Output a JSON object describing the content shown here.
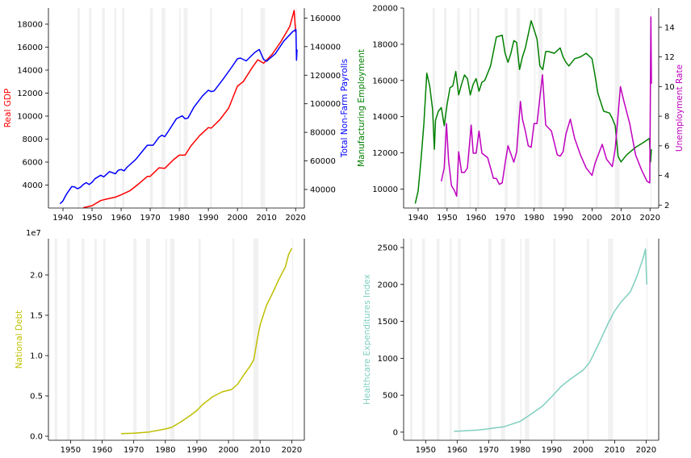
{
  "chart_data": [
    {
      "type": "line",
      "recession_shading": true,
      "xlim": [
        1935,
        2023
      ],
      "xticks": [
        1940,
        1950,
        1960,
        1970,
        1980,
        1990,
        2000,
        2010,
        2020
      ],
      "left_axis": {
        "label": "Real GDP",
        "color": "#ff0000",
        "ylim": [
          2000,
          19400
        ],
        "ticks": [
          4000,
          6000,
          8000,
          10000,
          12000,
          14000,
          16000,
          18000
        ]
      },
      "right_axis": {
        "label": "Total Non-Farm Payrolls",
        "color": "#0000ff",
        "ylim": [
          27000,
          167000
        ],
        "ticks": [
          40000,
          60000,
          80000,
          100000,
          120000,
          140000,
          160000
        ]
      },
      "series": [
        {
          "axis": "left",
          "color": "#ff0000",
          "x": [
            1947,
            1950,
            1953,
            1955,
            1958,
            1960,
            1963,
            1966,
            1969,
            1970,
            1973,
            1975,
            1978,
            1980,
            1982,
            1984,
            1987,
            1990,
            1991,
            1994,
            1997,
            2000,
            2002,
            2005,
            2007,
            2009,
            2012,
            2015,
            2018,
            2019.5,
            2020
          ],
          "y": [
            2030,
            2200,
            2650,
            2780,
            2950,
            3150,
            3500,
            4100,
            4750,
            4760,
            5500,
            5450,
            6200,
            6600,
            6600,
            7400,
            8300,
            9000,
            8950,
            9700,
            10700,
            12600,
            13000,
            14200,
            14900,
            14600,
            15400,
            16500,
            17800,
            19200,
            17300
          ]
        },
        {
          "axis": "right",
          "color": "#0000ff",
          "x": [
            1939,
            1940,
            1941,
            1942,
            1943,
            1944,
            1945,
            1946,
            1947,
            1948,
            1949,
            1950,
            1951,
            1953,
            1954,
            1956,
            1958,
            1959,
            1960,
            1961,
            1962,
            1965,
            1967,
            1969,
            1970,
            1971,
            1973,
            1974,
            1975,
            1976,
            1979,
            1980,
            1981,
            1982,
            1983,
            1985,
            1988,
            1990,
            1991,
            1992,
            1995,
            1998,
            2000,
            2001,
            2003,
            2006,
            2007.5,
            2009,
            2010,
            2013,
            2016,
            2019,
            2020.1,
            2020.3,
            2020.5
          ],
          "y": [
            30000,
            32000,
            36000,
            39000,
            42000,
            41800,
            40500,
            41500,
            43500,
            44800,
            43500,
            45000,
            47500,
            50000,
            48800,
            52500,
            51000,
            53500,
            54000,
            53000,
            55500,
            61000,
            66000,
            71000,
            71000,
            71000,
            76500,
            78000,
            77000,
            80000,
            89500,
            90500,
            91500,
            89500,
            90000,
            97500,
            105500,
            109500,
            108500,
            109000,
            117000,
            125500,
            131500,
            132000,
            130000,
            136000,
            138000,
            131000,
            129800,
            135000,
            144000,
            150500,
            152000,
            130500,
            138000
          ]
        }
      ]
    },
    {
      "type": "line",
      "recession_shading": true,
      "xlim": [
        1935,
        2023
      ],
      "xticks": [
        1940,
        1950,
        1960,
        1970,
        1980,
        1990,
        2000,
        2010,
        2020
      ],
      "left_axis": {
        "label": "Manufacturing Employment",
        "color": "#008000",
        "ylim": [
          8950,
          20000
        ],
        "ticks": [
          10000,
          12000,
          14000,
          16000,
          18000,
          20000
        ]
      },
      "right_axis": {
        "label": "Unemployment Rate",
        "color": "#bf00bf",
        "ylim": [
          1.8,
          15.3
        ],
        "ticks": [
          2,
          4,
          6,
          8,
          10,
          12,
          14
        ]
      },
      "series": [
        {
          "axis": "left",
          "color": "#008000",
          "x": [
            1939,
            1940,
            1941,
            1942,
            1943,
            1944,
            1945,
            1945.6,
            1946,
            1947,
            1948,
            1949,
            1950,
            1951,
            1952,
            1953,
            1954,
            1955,
            1956,
            1957,
            1958,
            1959,
            1960,
            1961,
            1962,
            1963,
            1965,
            1966,
            1967,
            1969,
            1970,
            1971,
            1972,
            1973,
            1974,
            1975,
            1976,
            1977,
            1979,
            1980,
            1981,
            1982,
            1983,
            1984,
            1985,
            1987,
            1989,
            1990,
            1991,
            1992,
            1994,
            1996,
            1998,
            2000,
            2001,
            2002,
            2004,
            2006,
            2007,
            2008,
            2009,
            2010,
            2012,
            2015,
            2018,
            2019.8,
            2020.2,
            2020.5
          ],
          "y": [
            9200,
            9900,
            11600,
            13600,
            16400,
            15700,
            14400,
            12200,
            13800,
            14300,
            14500,
            13500,
            14700,
            15600,
            15700,
            16500,
            15200,
            15800,
            16300,
            16100,
            15200,
            15800,
            16100,
            15400,
            15900,
            16000,
            16800,
            17600,
            18400,
            18500,
            17500,
            17000,
            17500,
            18200,
            18100,
            16600,
            17300,
            17800,
            19300,
            18800,
            18300,
            16800,
            16600,
            17600,
            17600,
            17500,
            17800,
            17300,
            17000,
            16800,
            17200,
            17300,
            17500,
            17200,
            16300,
            15300,
            14300,
            14200,
            13900,
            13500,
            11800,
            11500,
            11900,
            12300,
            12600,
            12800,
            11500,
            12200
          ]
        },
        {
          "axis": "right",
          "color": "#bf00bf",
          "x": [
            1948,
            1949,
            1949.8,
            1950.5,
            1951.5,
            1952.5,
            1953.3,
            1954,
            1955,
            1956,
            1957,
            1958.3,
            1959,
            1960,
            1961,
            1962,
            1964,
            1966,
            1967,
            1968,
            1969,
            1970,
            1971,
            1973,
            1974,
            1975.3,
            1976,
            1977,
            1978,
            1979,
            1980,
            1981,
            1982.9,
            1984,
            1986,
            1988,
            1989,
            1990,
            1991,
            1992.5,
            1994,
            1996,
            1998,
            2000,
            2001,
            2003.5,
            2005,
            2007,
            2008,
            2009.8,
            2011,
            2013,
            2015,
            2017,
            2019,
            2019.9,
            2020.3,
            2020.5
          ],
          "y": [
            3.6,
            4.5,
            7.5,
            5.0,
            3.3,
            3.0,
            2.6,
            5.6,
            4.2,
            4.2,
            4.5,
            7.4,
            5.5,
            5.5,
            7.0,
            5.5,
            5.2,
            3.8,
            3.8,
            3.4,
            3.5,
            4.8,
            6.0,
            4.9,
            5.6,
            9.0,
            7.8,
            7.0,
            6.0,
            5.9,
            7.5,
            7.5,
            10.8,
            7.4,
            7.0,
            5.4,
            5.3,
            5.6,
            6.8,
            7.8,
            6.5,
            5.4,
            4.5,
            4.0,
            4.8,
            6.1,
            5.1,
            4.6,
            5.8,
            10.0,
            9.0,
            7.5,
            5.4,
            4.4,
            3.6,
            3.5,
            14.7,
            10.2
          ]
        }
      ]
    },
    {
      "type": "line",
      "recession_shading": true,
      "xlim": [
        1943,
        2024
      ],
      "xticks": [
        1950,
        1960,
        1970,
        1980,
        1990,
        2000,
        2010,
        2020
      ],
      "offset_text": "1e7",
      "left_axis": {
        "label": "National Debt",
        "color": "#bfbf00",
        "ylim": [
          -0.05,
          2.45
        ],
        "ticks": [
          0.0,
          0.5,
          1.0,
          1.5,
          2.0
        ],
        "tick_labels": [
          "0.0",
          "0.5",
          "1.0",
          "1.5",
          "2.0"
        ]
      },
      "series": [
        {
          "axis": "left",
          "color": "#bfbf00",
          "x": [
            1966,
            1970,
            1975,
            1980,
            1982,
            1985,
            1988,
            1990,
            1992,
            1995,
            1998,
            2000,
            2001,
            2003,
            2005,
            2007,
            2008,
            2009,
            2010,
            2012,
            2014,
            2016,
            2018,
            2019,
            2020
          ],
          "y": [
            0.032,
            0.037,
            0.053,
            0.09,
            0.11,
            0.18,
            0.26,
            0.32,
            0.4,
            0.49,
            0.55,
            0.57,
            0.58,
            0.65,
            0.77,
            0.88,
            0.95,
            1.18,
            1.38,
            1.62,
            1.78,
            1.95,
            2.1,
            2.25,
            2.33
          ]
        }
      ]
    },
    {
      "type": "line",
      "recession_shading": true,
      "xlim": [
        1943,
        2024
      ],
      "xticks": [
        1950,
        1960,
        1970,
        1980,
        1990,
        2000,
        2010,
        2020
      ],
      "left_axis": {
        "label": "Healthcare Expenditures Index",
        "color": "#7fcfbf",
        "ylim": [
          -110,
          2620
        ],
        "ticks": [
          0,
          500,
          1000,
          1500,
          2000,
          2500
        ]
      },
      "series": [
        {
          "axis": "left",
          "color": "#7fcfbf",
          "x": [
            1959,
            1963,
            1967,
            1970,
            1975,
            1980,
            1983,
            1987,
            1990,
            1993,
            1996,
            2000,
            2002,
            2005,
            2008,
            2010,
            2012,
            2015,
            2017,
            2019,
            2019.8,
            2020.2
          ],
          "y": [
            10,
            20,
            30,
            45,
            75,
            145,
            230,
            350,
            480,
            620,
            720,
            840,
            940,
            1200,
            1480,
            1640,
            1760,
            1900,
            2100,
            2350,
            2480,
            2000
          ]
        }
      ]
    }
  ]
}
